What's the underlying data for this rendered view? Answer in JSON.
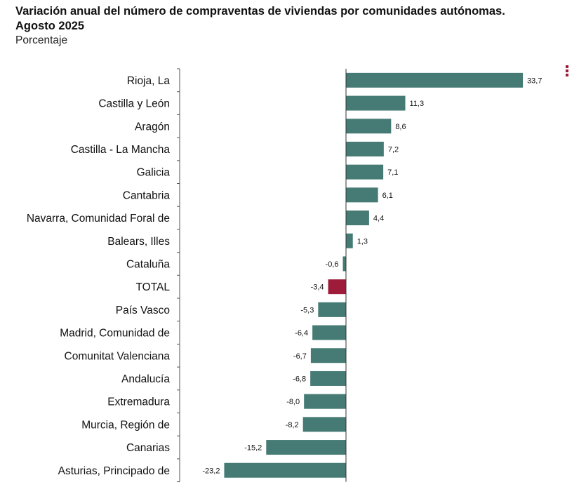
{
  "title_line1": "Variación anual del número de compraventas de viviendas por comunidades autónomas.",
  "title_line2": "Agosto 2025",
  "subtitle": "Porcentaje",
  "colors": {
    "bar": "#457b74",
    "total": "#9c1c3a",
    "axis": "#555555"
  },
  "chart_data": {
    "type": "bar",
    "orientation": "horizontal",
    "categories": [
      "Rioja, La",
      "Castilla y León",
      "Aragón",
      "Castilla - La Mancha",
      "Galicia",
      "Cantabria",
      "Navarra, Comunidad Foral de",
      "Balears, Illes",
      "Cataluña",
      "TOTAL",
      "País Vasco",
      "Madrid, Comunidad de",
      "Comunitat Valenciana",
      "Andalucía",
      "Extremadura",
      "Murcia, Región de",
      "Canarias",
      "Asturias, Principado de"
    ],
    "values": [
      33.7,
      11.3,
      8.6,
      7.2,
      7.1,
      6.1,
      4.4,
      1.3,
      -0.6,
      -3.4,
      -5.3,
      -6.4,
      -6.7,
      -6.8,
      -8.0,
      -8.2,
      -15.2,
      -23.2
    ],
    "value_labels": [
      "33,7",
      "11,3",
      "8,6",
      "7,2",
      "7,1",
      "6,1",
      "4,4",
      "1,3",
      "-0,6",
      "-3,4",
      "-5,3",
      "-6,4",
      "-6,7",
      "-6,8",
      "-8,0",
      "-8,2",
      "-15,2",
      "-23,2"
    ],
    "highlight_category": "TOTAL",
    "title": "Variación anual del número de compraventas de viviendas por comunidades autónomas. Agosto 2025",
    "subtitle": "Porcentaje",
    "xlabel": "",
    "ylabel": "",
    "xlim": [
      -23.2,
      33.7
    ],
    "grid": false,
    "legend": "none"
  }
}
